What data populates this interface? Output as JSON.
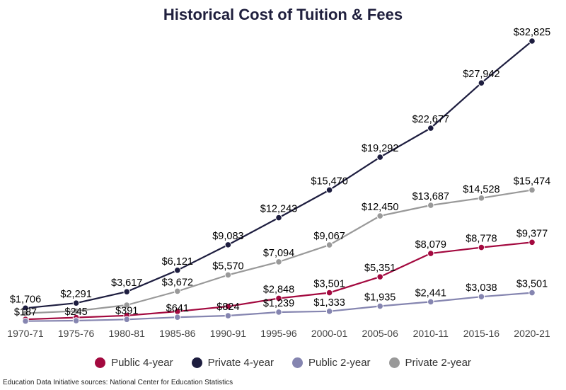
{
  "chart_data": {
    "type": "line",
    "title": "Historical Cost of Tuition & Fees",
    "categories": [
      "1970-71",
      "1975-76",
      "1980-81",
      "1985-86",
      "1990-91",
      "1995-96",
      "2000-01",
      "2005-06",
      "2010-11",
      "2015-16",
      "2020-21"
    ],
    "ylim": [
      0,
      35000
    ],
    "grid": false,
    "legend_position": "bottom",
    "series": [
      {
        "name": "Public 4-year",
        "color": "#a3093f",
        "values": [
          394,
          611,
          840,
          1318,
          1908,
          2848,
          3501,
          5351,
          8079,
          8778,
          9377
        ],
        "labels": [
          "",
          "",
          "",
          "",
          "",
          "$2,848",
          "$3,501",
          "$5,351",
          "$8,079",
          "$8,778",
          "$9,377"
        ]
      },
      {
        "name": "Private 4-year",
        "color": "#1d1d3f",
        "values": [
          1706,
          2291,
          3617,
          6121,
          9083,
          12243,
          15470,
          19292,
          22677,
          27942,
          32825
        ],
        "labels": [
          "$1,706",
          "$2,291",
          "$3,617",
          "$6,121",
          "$9,083",
          "$12,243",
          "$15,470",
          "$19,292",
          "$22,677",
          "$27,942",
          "$32,825"
        ]
      },
      {
        "name": "Public 2-year",
        "color": "#8585b0",
        "values": [
          187,
          245,
          391,
          641,
          824,
          1239,
          1333,
          1935,
          2441,
          3038,
          3501
        ],
        "labels": [
          "$187",
          "$245",
          "$391",
          "$641",
          "$824",
          "$1,239",
          "$1,333",
          "$1,935",
          "$2,441",
          "$3,038",
          "$3,501"
        ]
      },
      {
        "name": "Private 2-year",
        "color": "#999999",
        "values": [
          1109,
          1367,
          2062,
          3672,
          5570,
          7094,
          9067,
          12450,
          13687,
          14528,
          15474
        ],
        "labels": [
          "",
          "",
          "",
          "$3,672",
          "$5,570",
          "$7,094",
          "$9,067",
          "$12,450",
          "$13,687",
          "$14,528",
          "$15,474"
        ]
      }
    ]
  },
  "source": "Education Data Initiative sources: National Center for Education Statistics"
}
